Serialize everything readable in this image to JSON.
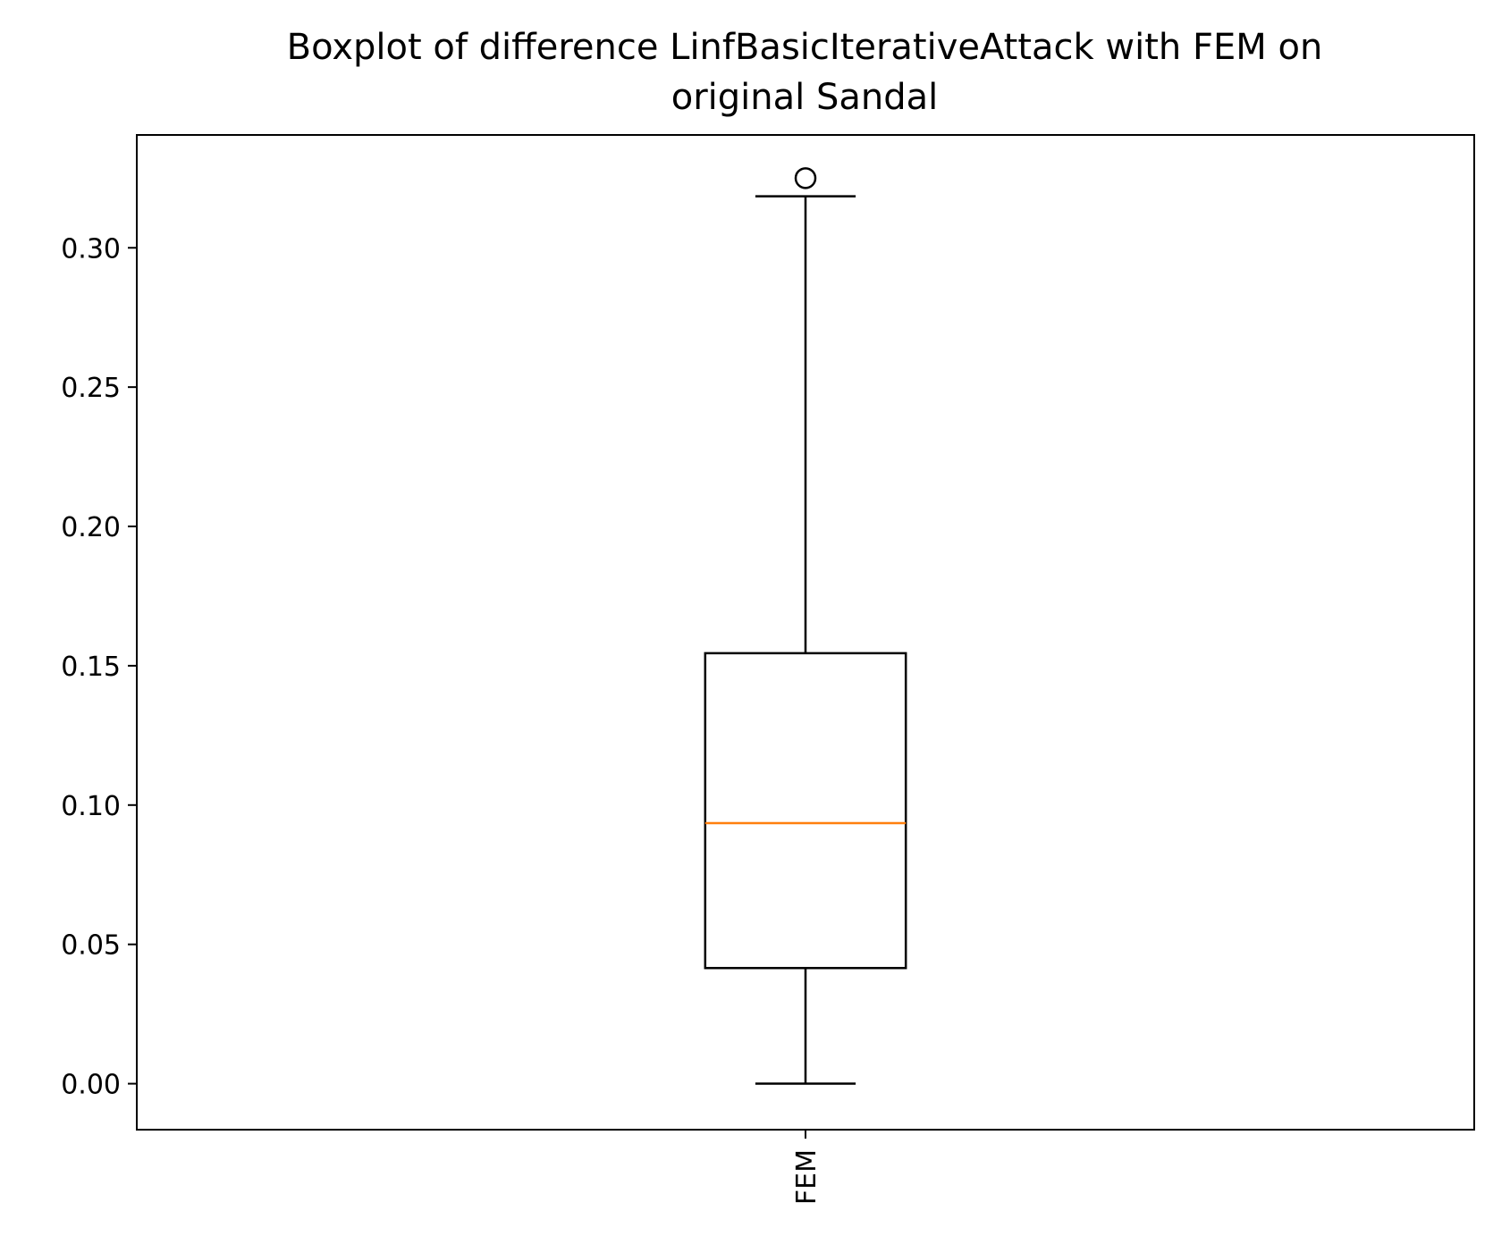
{
  "chart_data": {
    "type": "boxplot",
    "title_lines": [
      "Boxplot of difference LinfBasicIterativeAttack with FEM on",
      "original Sandal"
    ],
    "xlabel": "",
    "ylabel": "",
    "ylim": [
      -0.0165,
      0.3405
    ],
    "yticks": [
      0.0,
      0.05,
      0.1,
      0.15,
      0.2,
      0.25,
      0.3
    ],
    "ytick_labels": [
      "0.00",
      "0.05",
      "0.10",
      "0.15",
      "0.20",
      "0.25",
      "0.30"
    ],
    "categories": [
      "FEM"
    ],
    "boxes": [
      {
        "label": "FEM",
        "whisker_low": 0.0,
        "q1": 0.0415,
        "median": 0.0935,
        "q3": 0.1545,
        "whisker_high": 0.3185,
        "outliers": [
          0.325
        ]
      }
    ],
    "grid": false,
    "colors": {
      "box": "#000000",
      "median": "#ff7f0e",
      "outlier": "#000000"
    }
  }
}
